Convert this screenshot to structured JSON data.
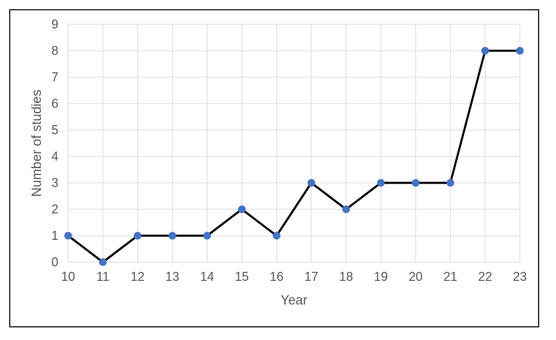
{
  "chart_data": {
    "type": "line",
    "title": "",
    "xlabel": "Year",
    "ylabel": "Number of studies",
    "categories": [
      "10",
      "11",
      "12",
      "13",
      "14",
      "15",
      "16",
      "17",
      "18",
      "19",
      "20",
      "21",
      "22",
      "23"
    ],
    "series": [
      {
        "name": "Number of studies",
        "values": [
          1,
          0,
          1,
          1,
          1,
          2,
          1,
          3,
          2,
          3,
          3,
          3,
          8,
          8
        ]
      }
    ],
    "ylim": [
      0,
      9
    ],
    "ytick_step": 1,
    "yticks": [
      0,
      1,
      2,
      3,
      4,
      5,
      6,
      7,
      8,
      9
    ],
    "grid": "both",
    "legend": "none",
    "colors": {
      "line": "#000000",
      "marker": "#4472C4",
      "gridline": "#D9D9D9",
      "tick_label": "#595959",
      "axis_title": "#595959",
      "frame_border": "#404040",
      "background": "#FFFFFF"
    }
  }
}
